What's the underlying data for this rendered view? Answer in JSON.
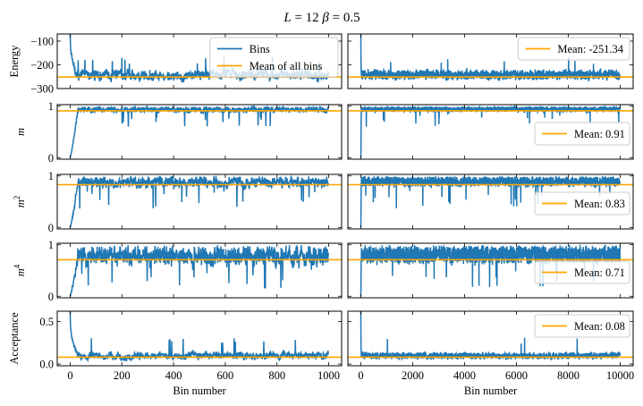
{
  "chart_data": {
    "type": "line",
    "title": "L = 12   β = 0.5",
    "title_parts": {
      "L_label": "L",
      "L_value": "12",
      "beta_label": "β",
      "beta_value": "0.5"
    },
    "colors": {
      "series": "#1f77b4",
      "mean": "#ffa500"
    },
    "columns": [
      {
        "name": "left",
        "xlabel": "Bin number",
        "xlim": [
          -50,
          1050
        ],
        "xticks": [
          0,
          200,
          400,
          600,
          800,
          1000
        ],
        "n_bins": 1000
      },
      {
        "name": "right",
        "xlabel": "Bin number",
        "xlim": [
          -500,
          10500
        ],
        "xticks": [
          0,
          2000,
          4000,
          6000,
          8000,
          10000
        ],
        "n_bins": 10000
      }
    ],
    "rows": [
      {
        "key": "energy",
        "ylabel": "Energy",
        "ylabel_italic": false,
        "ylim": [
          -300,
          -70
        ],
        "yticks": [
          -100,
          -200,
          -300
        ],
        "ytick_labels": [
          "−100",
          "−200",
          "−300"
        ],
        "mean": -251.34,
        "left_legend": {
          "entries": [
            {
              "label": "Bins",
              "kind": "series"
            },
            {
              "label": "Mean of all bins",
              "kind": "mean"
            }
          ],
          "position": "top-right"
        },
        "right_legend": {
          "entries": [
            {
              "label": "Mean: -251.34",
              "kind": "mean"
            }
          ],
          "position": "top-right"
        },
        "profile": {
          "start": -60,
          "floor": -285,
          "ceil": -165,
          "typical_high": -215,
          "burnin_bins": 30
        }
      },
      {
        "key": "m",
        "ylabel": "m",
        "ylabel_italic": true,
        "ylim": [
          -0.03,
          1.03
        ],
        "yticks": [
          0,
          1
        ],
        "ytick_labels": [
          "0",
          "1"
        ],
        "mean": 0.91,
        "right_legend": {
          "entries": [
            {
              "label": "Mean: 0.91",
              "kind": "mean"
            }
          ],
          "position": "center-right"
        },
        "profile": {
          "start": 0.0,
          "floor": 0.6,
          "ceil": 1.0,
          "typical_low": 0.85,
          "burnin_bins": 30
        }
      },
      {
        "key": "m2",
        "ylabel": "m²",
        "ylabel_italic": true,
        "ylabel_base": "m",
        "ylabel_sup": "2",
        "ylim": [
          -0.03,
          1.03
        ],
        "yticks": [
          0,
          1
        ],
        "ytick_labels": [
          "0",
          "1"
        ],
        "mean": 0.83,
        "right_legend": {
          "entries": [
            {
              "label": "Mean: 0.83",
              "kind": "mean"
            }
          ],
          "position": "center-right"
        },
        "profile": {
          "start": 0.0,
          "floor": 0.35,
          "ceil": 1.0,
          "typical_low": 0.72,
          "burnin_bins": 30
        }
      },
      {
        "key": "m4",
        "ylabel": "m⁴",
        "ylabel_italic": true,
        "ylabel_base": "m",
        "ylabel_sup": "4",
        "ylim": [
          -0.03,
          1.03
        ],
        "yticks": [
          0,
          1
        ],
        "ytick_labels": [
          "0",
          "1"
        ],
        "mean": 0.71,
        "right_legend": {
          "entries": [
            {
              "label": "Mean: 0.71",
              "kind": "mean"
            }
          ],
          "position": "center-right"
        },
        "profile": {
          "start": 0.0,
          "floor": 0.12,
          "ceil": 1.0,
          "typical_low": 0.5,
          "burnin_bins": 30
        }
      },
      {
        "key": "acceptance",
        "ylabel": "Acceptance",
        "ylabel_italic": false,
        "ylim": [
          -0.02,
          0.62
        ],
        "yticks": [
          0.0,
          0.5
        ],
        "ytick_labels": [
          "0.0",
          "0.5"
        ],
        "mean": 0.08,
        "right_legend": {
          "entries": [
            {
              "label": "Mean: 0.08",
              "kind": "mean"
            }
          ],
          "position": "top-right"
        },
        "profile": {
          "start": 0.62,
          "floor": 0.01,
          "ceil": 0.33,
          "typical_high": 0.15,
          "burnin_bins": 30
        }
      }
    ]
  }
}
